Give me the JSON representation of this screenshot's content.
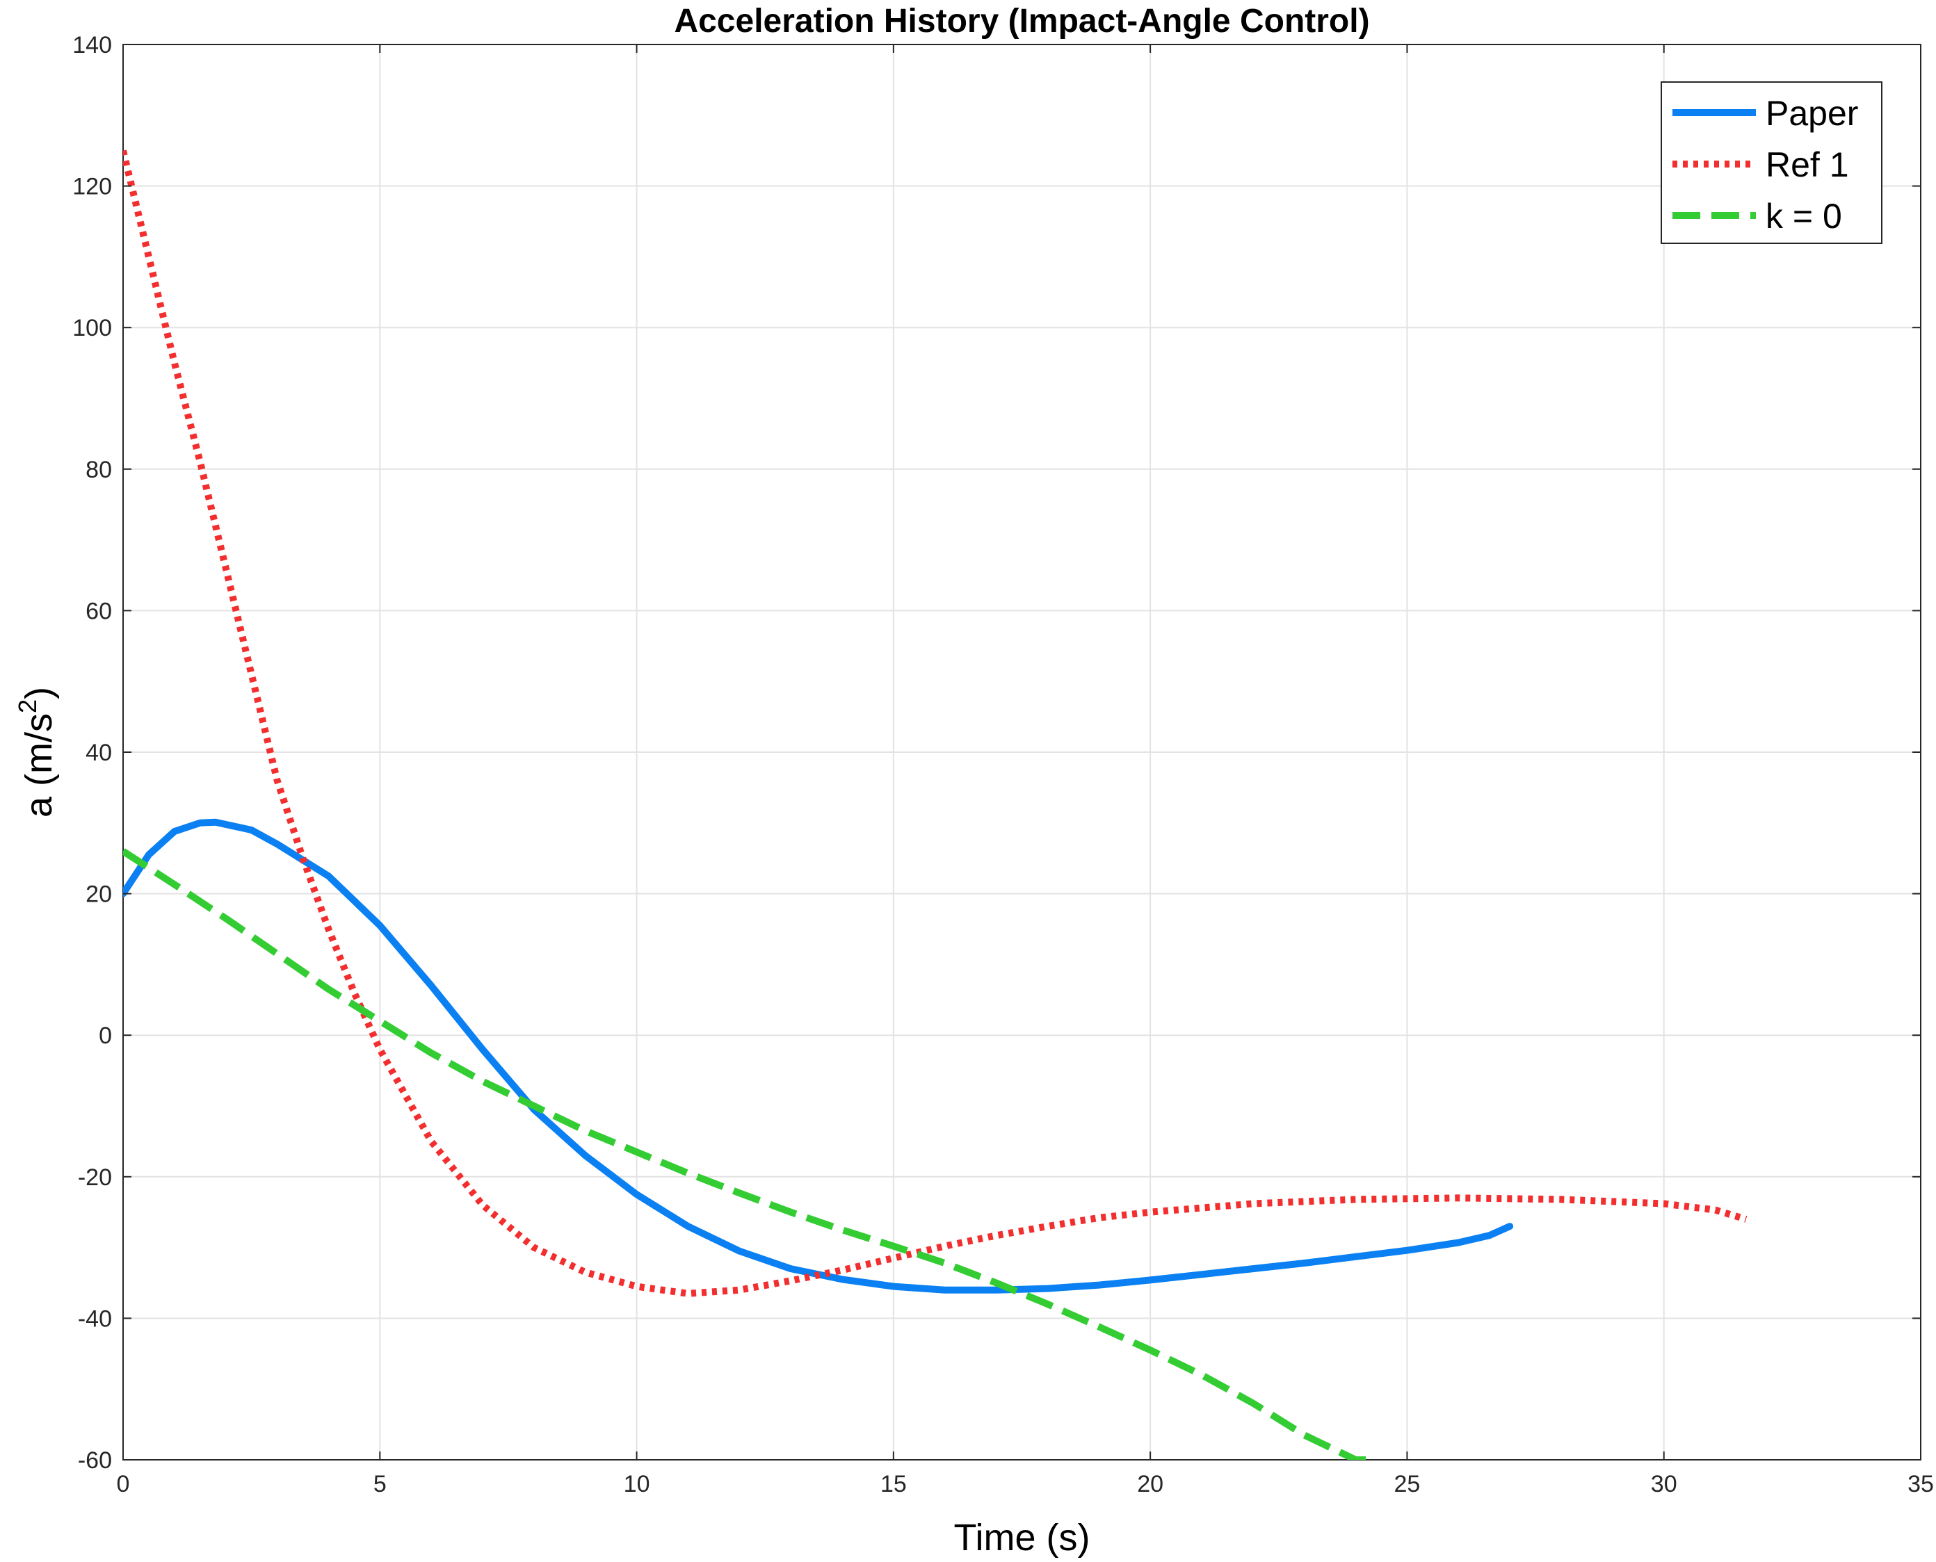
{
  "chart_data": {
    "type": "line",
    "title": "Acceleration History (Impact-Angle Control)",
    "xlabel": "Time (s)",
    "ylabel_main": "a (m/s",
    "ylabel_sup": "2",
    "ylabel_close": ")",
    "xlim": [
      0,
      35
    ],
    "ylim": [
      -60,
      140
    ],
    "xticks": [
      0,
      5,
      10,
      15,
      20,
      25,
      30,
      35
    ],
    "yticks": [
      -60,
      -40,
      -20,
      0,
      20,
      40,
      60,
      80,
      100,
      120,
      140
    ],
    "xtick_labels": [
      "0",
      "5",
      "10",
      "15",
      "20",
      "25",
      "30",
      "35"
    ],
    "ytick_labels": [
      "-60",
      "-40",
      "-20",
      "0",
      "20",
      "40",
      "60",
      "80",
      "100",
      "120",
      "140"
    ],
    "grid": true,
    "legend_position": "top-right",
    "series": [
      {
        "name": "Paper",
        "color": "#0a80f2",
        "style": "solid",
        "x": [
          0,
          0.5,
          1,
          1.5,
          1.8,
          2.5,
          3,
          4,
          5,
          6,
          7,
          8,
          9,
          10,
          11,
          12,
          13,
          14,
          15,
          16,
          17,
          18,
          19,
          20,
          21,
          22,
          23,
          24,
          25,
          26,
          26.6,
          27
        ],
        "y": [
          20,
          25.5,
          28.8,
          30,
          30.1,
          29,
          27,
          22.5,
          15.5,
          7,
          -2,
          -10.5,
          -17,
          -22.5,
          -27,
          -30.5,
          -33,
          -34.5,
          -35.5,
          -36,
          -36,
          -35.8,
          -35.3,
          -34.6,
          -33.8,
          -33,
          -32.2,
          -31.3,
          -30.4,
          -29.3,
          -28.3,
          -27
        ]
      },
      {
        "name": "Ref 1",
        "color": "#f22e2e",
        "style": "dotted",
        "x": [
          0,
          0.5,
          1,
          1.5,
          2,
          2.5,
          3,
          3.5,
          4,
          4.5,
          5,
          6,
          7,
          8,
          9,
          10,
          11,
          12,
          13,
          14,
          15,
          16,
          17,
          18,
          19,
          20,
          22,
          24,
          26,
          28,
          30,
          31,
          31.6
        ],
        "y": [
          125,
          110,
          95,
          81,
          66,
          51,
          36,
          25,
          15,
          6,
          -2,
          -15,
          -24,
          -30,
          -33.5,
          -35.5,
          -36.5,
          -36,
          -34.7,
          -33.2,
          -31.5,
          -29.8,
          -28.3,
          -27,
          -25.8,
          -25,
          -23.8,
          -23.2,
          -23,
          -23.2,
          -23.8,
          -24.7,
          -26
        ]
      },
      {
        "name": "k = 0",
        "color": "#33cc33",
        "style": "dashed",
        "x": [
          0,
          1,
          2,
          3,
          4,
          5,
          6,
          7,
          8,
          9,
          10,
          11,
          12,
          13,
          14,
          15,
          16,
          17,
          18,
          19,
          20,
          21,
          22,
          23,
          24,
          24.2
        ],
        "y": [
          26,
          21.3,
          16.5,
          11.5,
          6.5,
          2,
          -2.5,
          -6.5,
          -10,
          -13.5,
          -16.5,
          -19.5,
          -22.3,
          -25,
          -27.5,
          -29.8,
          -32.2,
          -35,
          -38,
          -41.2,
          -44.5,
          -48,
          -52,
          -56.5,
          -60,
          -60
        ]
      }
    ]
  }
}
